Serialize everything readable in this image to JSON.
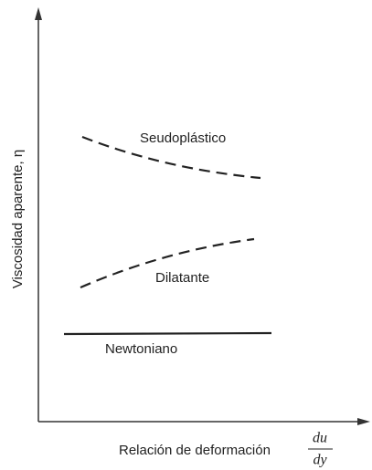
{
  "axes": {
    "y_label": "Viscosidad aparente, η",
    "x_label": "Relación de deformación",
    "x_fraction_numerator": "du",
    "x_fraction_denominator": "dy"
  },
  "curves": [
    {
      "label": "Seudoplástico"
    },
    {
      "label": "Dilatante"
    },
    {
      "label": "Newtoniano"
    }
  ]
}
